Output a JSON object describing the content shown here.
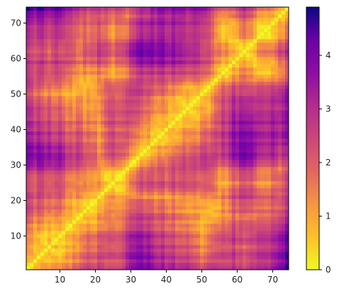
{
  "chart_data": {
    "type": "heatmap",
    "title": "",
    "xlabel": "",
    "ylabel": "",
    "x_range": [
      1,
      74
    ],
    "y_range": [
      1,
      74
    ],
    "x_ticks": [
      "10",
      "20",
      "30",
      "40",
      "50",
      "60",
      "70"
    ],
    "y_ticks": [
      "10",
      "20",
      "30",
      "40",
      "50",
      "60",
      "70"
    ],
    "colorbar": {
      "colormap": "plasma_r",
      "range": [
        0,
        4.9
      ],
      "ticks": [
        "0",
        "1",
        "2",
        "3",
        "4"
      ]
    },
    "description_of_values": "symmetric 74x74 distance matrix; diagonal is 0",
    "n": 74
  }
}
